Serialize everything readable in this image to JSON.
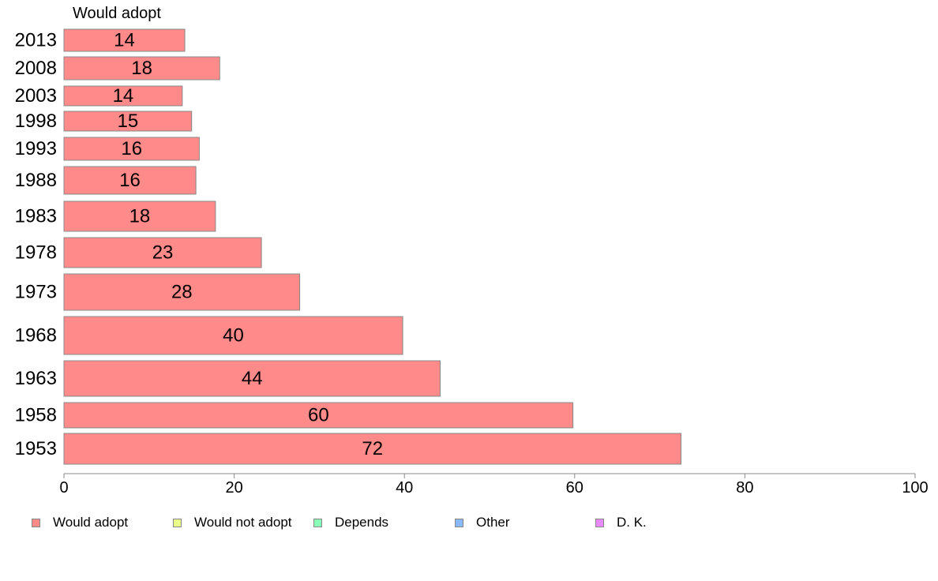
{
  "chart_data": {
    "type": "bar",
    "orientation": "horizontal",
    "series_title": "Would adopt",
    "categories": [
      "2013",
      "2008",
      "2003",
      "1998",
      "1993",
      "1988",
      "1983",
      "1978",
      "1973",
      "1968",
      "1963",
      "1958",
      "1953"
    ],
    "series": [
      {
        "name": "Would adopt",
        "values": [
          14.2,
          18.3,
          13.9,
          15.0,
          15.9,
          15.5,
          17.8,
          23.2,
          27.7,
          39.8,
          44.2,
          59.8,
          72.5
        ],
        "labels": [
          "14",
          "18",
          "14",
          "15",
          "16",
          "16",
          "18",
          "23",
          "28",
          "40",
          "44",
          "60",
          "72"
        ]
      }
    ],
    "xlim": [
      0,
      100
    ],
    "x_ticks": [
      "0",
      "20",
      "40",
      "60",
      "80",
      "100"
    ],
    "grid": false,
    "legend_position": "bottom",
    "legend": [
      {
        "label": "Would adopt",
        "color": "#ff8a8a"
      },
      {
        "label": "Would not adopt",
        "color": "#eaff8a"
      },
      {
        "label": "Depends",
        "color": "#8affb8"
      },
      {
        "label": "Other",
        "color": "#8ab8ff"
      },
      {
        "label": "D. K.",
        "color": "#e88aff"
      }
    ],
    "bar_color": "#ff8a8a",
    "bar_border_color": "#888888"
  }
}
